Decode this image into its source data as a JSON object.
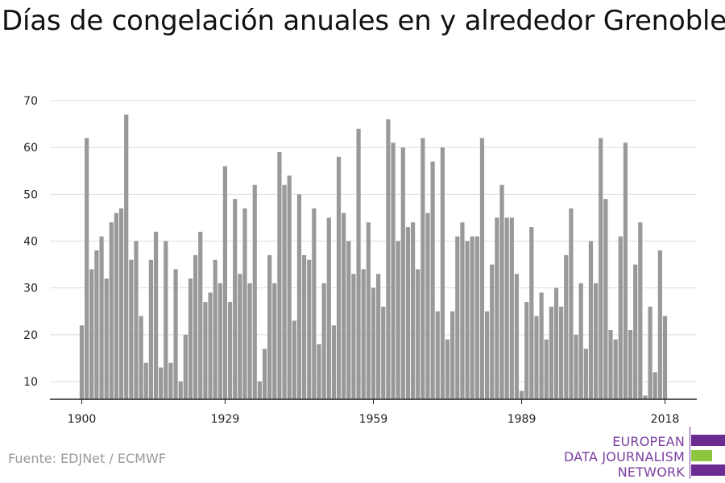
{
  "title": "Días de congelación anuales en y alrededor Grenoble",
  "source": "Fuente: EDJNet / ECMWF",
  "logo": {
    "lines": [
      "EUROPEAN",
      "DATA JOURNALISM",
      "NETWORK"
    ],
    "colors": {
      "purple": "#6a2c91",
      "green": "#8dc63f"
    }
  },
  "chart_data": {
    "type": "bar",
    "color": "#999999",
    "grid": true,
    "ylim": [
      6,
      70
    ],
    "yticks": [
      10,
      20,
      30,
      40,
      50,
      60,
      70
    ],
    "xticks": [
      1900,
      1929,
      1959,
      1989,
      2018
    ],
    "x": [
      1900,
      1901,
      1902,
      1903,
      1904,
      1905,
      1906,
      1907,
      1908,
      1909,
      1910,
      1911,
      1912,
      1913,
      1914,
      1915,
      1916,
      1917,
      1918,
      1919,
      1920,
      1921,
      1922,
      1923,
      1924,
      1925,
      1926,
      1927,
      1928,
      1929,
      1930,
      1931,
      1932,
      1933,
      1934,
      1935,
      1936,
      1937,
      1938,
      1939,
      1940,
      1941,
      1942,
      1943,
      1944,
      1945,
      1946,
      1947,
      1948,
      1949,
      1950,
      1951,
      1952,
      1953,
      1954,
      1955,
      1956,
      1957,
      1958,
      1959,
      1960,
      1961,
      1962,
      1963,
      1964,
      1965,
      1966,
      1967,
      1968,
      1969,
      1970,
      1971,
      1972,
      1973,
      1974,
      1975,
      1976,
      1977,
      1978,
      1979,
      1980,
      1981,
      1982,
      1983,
      1984,
      1985,
      1986,
      1987,
      1988,
      1989,
      1990,
      1991,
      1992,
      1993,
      1994,
      1995,
      1996,
      1997,
      1998,
      1999,
      2000,
      2001,
      2002,
      2003,
      2004,
      2005,
      2006,
      2007,
      2008,
      2009,
      2010,
      2011,
      2012,
      2013,
      2014,
      2015,
      2016,
      2017,
      2018
    ],
    "values": [
      22,
      62,
      34,
      38,
      41,
      32,
      44,
      46,
      47,
      67,
      36,
      40,
      24,
      14,
      36,
      42,
      13,
      40,
      14,
      34,
      10,
      20,
      32,
      37,
      42,
      27,
      29,
      36,
      31,
      56,
      27,
      49,
      33,
      47,
      31,
      52,
      10,
      17,
      37,
      31,
      59,
      52,
      54,
      23,
      50,
      37,
      36,
      47,
      18,
      31,
      45,
      22,
      58,
      46,
      40,
      33,
      64,
      34,
      44,
      30,
      33,
      26,
      66,
      61,
      40,
      60,
      43,
      44,
      34,
      62,
      46,
      57,
      25,
      60,
      19,
      25,
      41,
      44,
      40,
      41,
      41,
      62,
      25,
      35,
      45,
      52,
      45,
      45,
      33,
      8,
      27,
      43,
      24,
      29,
      19,
      26,
      30,
      26,
      37,
      47,
      20,
      31,
      17,
      40,
      31,
      62,
      49,
      21,
      19,
      41,
      61,
      21,
      35,
      44,
      7,
      26,
      12,
      38,
      24
    ]
  }
}
